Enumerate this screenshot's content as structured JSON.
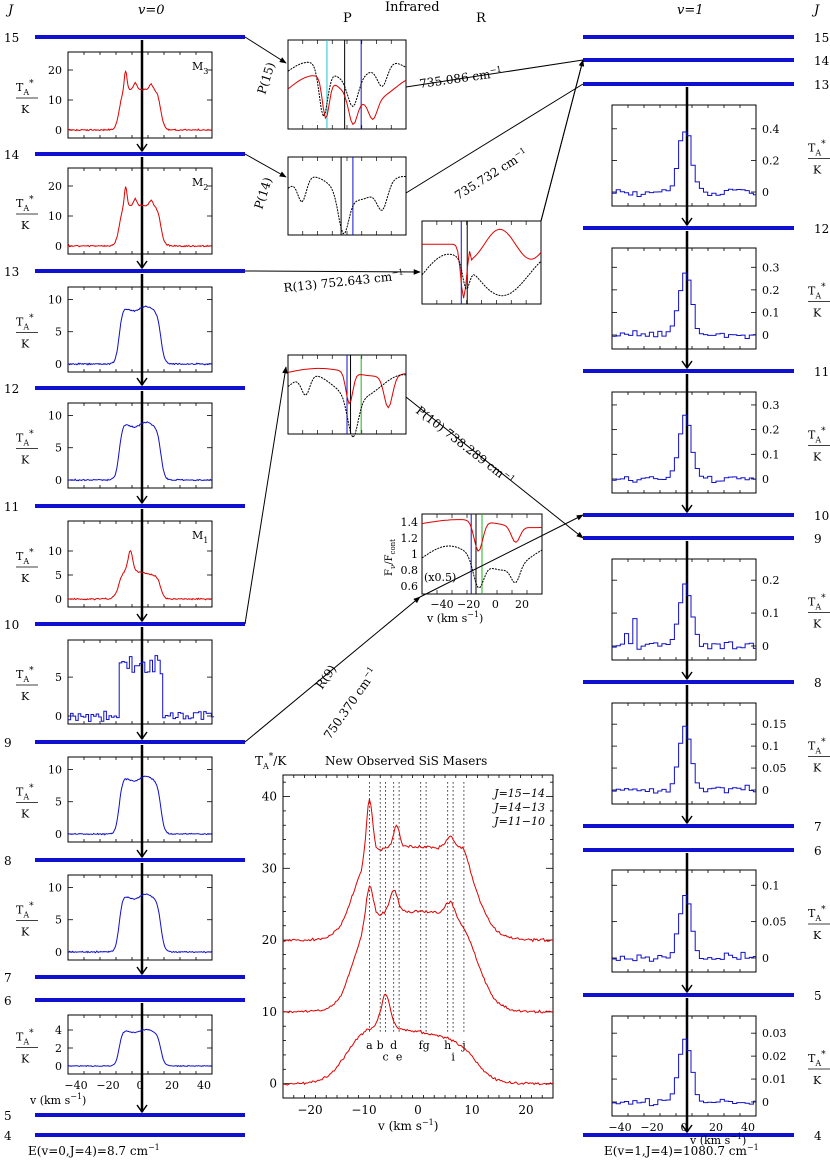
{
  "header": {
    "j_left": "J",
    "v0_title": "v=0",
    "infrared_title": "Infrared",
    "p_label": "P",
    "r_label": "R",
    "v1_title": "v=1",
    "j_right": "J"
  },
  "v0_levels": [
    "15",
    "14",
    "13",
    "12",
    "11",
    "10",
    "9",
    "8",
    "7",
    "6",
    "5",
    "4"
  ],
  "v1_levels": [
    "15",
    "14",
    "13",
    "12",
    "11",
    "10",
    "9",
    "8",
    "7",
    "6",
    "5",
    "4"
  ],
  "v0_energy": "E(v=0,J=4)=8.7 cm",
  "v1_energy": "E(v=1,J=4)=1080.7 cm",
  "minus_one": "−1",
  "axis_unit_y": "T",
  "axis_unit_y_sub": "A",
  "axis_unit_y_sup": "*",
  "axis_unit_y_den": "K",
  "v0_panels": [
    {
      "id": "15-14",
      "color": "#e00000",
      "yticks": [
        "0",
        "10",
        "20"
      ],
      "ymax": 24,
      "maser": "M",
      "maser_sub": "3",
      "type": "maser"
    },
    {
      "id": "14-13",
      "color": "#e00000",
      "yticks": [
        "0",
        "10",
        "20"
      ],
      "ymax": 24,
      "maser": "M",
      "maser_sub": "2",
      "type": "maser"
    },
    {
      "id": "13-12",
      "color": "#1010c8",
      "yticks": [
        "0",
        "5",
        "10"
      ],
      "ymax": 11,
      "maser": "",
      "maser_sub": "",
      "type": "flat"
    },
    {
      "id": "12-11",
      "color": "#1010c8",
      "yticks": [
        "0",
        "5",
        "10"
      ],
      "ymax": 11,
      "maser": "",
      "maser_sub": "",
      "type": "flat"
    },
    {
      "id": "11-10",
      "color": "#e00000",
      "yticks": [
        "0",
        "5",
        "10"
      ],
      "ymax": 15,
      "maser": "M",
      "maser_sub": "1",
      "type": "maser1"
    },
    {
      "id": "10-9",
      "color": "#1010c8",
      "yticks": [
        "0",
        "5"
      ],
      "ymax": 9,
      "maser": "",
      "maser_sub": "",
      "type": "noisy"
    },
    {
      "id": "9-8",
      "color": "#1010c8",
      "yticks": [
        "0",
        "5",
        "10"
      ],
      "ymax": 11,
      "maser": "",
      "maser_sub": "",
      "type": "flat"
    },
    {
      "id": "8-7",
      "color": "#1010c8",
      "yticks": [
        "0",
        "5",
        "10"
      ],
      "ymax": 11,
      "maser": "",
      "maser_sub": "",
      "type": "flat"
    },
    {
      "id": "6-5",
      "color": "#1010c8",
      "yticks": [
        "0",
        "2",
        "4"
      ],
      "ymax": 5,
      "maser": "",
      "maser_sub": "",
      "type": "flat"
    }
  ],
  "v0_xticks": [
    "−40",
    "−20",
    "0",
    "20",
    "40"
  ],
  "v0_xlabel": "v (km s",
  "v1_panels": [
    {
      "id": "13-12",
      "yticks": [
        "0",
        "0.2",
        "0.4"
      ],
      "ymax": 0.5
    },
    {
      "id": "12-11",
      "yticks": [
        "0",
        "0.1",
        "0.2",
        "0.3"
      ],
      "ymax": 0.35
    },
    {
      "id": "11-10",
      "yticks": [
        "0",
        "0.1",
        "0.2",
        "0.3"
      ],
      "ymax": 0.32
    },
    {
      "id": "9-8",
      "yticks": [
        "0",
        "0.1",
        "0.2"
      ],
      "ymax": 0.24
    },
    {
      "id": "8-7",
      "yticks": [
        "0",
        "0.05",
        "0.1",
        "0.15"
      ],
      "ymax": 0.18
    },
    {
      "id": "6-5",
      "yticks": [
        "0",
        "0.05",
        "0.1"
      ],
      "ymax": 0.11
    },
    {
      "id": "5-4",
      "yticks": [
        "0",
        "0.01",
        "0.02",
        "0.03"
      ],
      "ymax": 0.034
    }
  ],
  "v1_xticks": [
    "−40",
    "−20",
    "0",
    "20",
    "40"
  ],
  "v1_xlabel": "v (km s",
  "transitions": {
    "p15": "P(15)",
    "p14": "P(14)",
    "r13": "R(13) 752.643 cm",
    "p10": "P(10) 738.289 cm",
    "r9": "R(9)",
    "r9_freq": "750.370 cm",
    "f735086": "735.086 cm",
    "f735732": "735.732 cm"
  },
  "ir_inset": {
    "ylabel": "F",
    "ylabel_sub": "ν",
    "ylabel_den": "F",
    "ylabel_den_sub": "cont",
    "yticks": [
      "0.6",
      "0.8",
      "1",
      "1.2",
      "1.4"
    ],
    "xticks": [
      "−40",
      "−20",
      "0",
      "20"
    ],
    "xlabel": "v (km s",
    "scale_note": "(x0.5)"
  },
  "central": {
    "title": "New Observed SiS Masers",
    "ylabel": "T",
    "ylabel_rest": "/K",
    "yticks": [
      "0",
      "10",
      "20",
      "30",
      "40"
    ],
    "xticks": [
      "−20",
      "−10",
      "0",
      "10",
      "20"
    ],
    "xlabel": "v (km s",
    "legend": [
      "J=15−14",
      "J=14−13",
      "J=11−10"
    ],
    "letters": [
      "a",
      "b",
      "c",
      "d",
      "e",
      "f",
      "g",
      "h",
      "i",
      "j"
    ],
    "letter_vel": [
      -9.0,
      -7.0,
      -6.0,
      -4.5,
      -3.5,
      0.5,
      1.5,
      5.5,
      6.5,
      8.5
    ]
  }
}
